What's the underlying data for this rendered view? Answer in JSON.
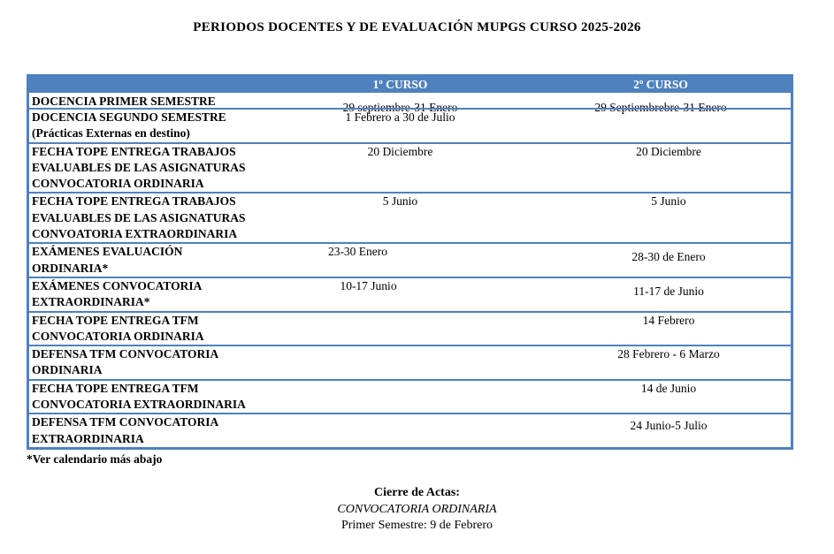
{
  "title": "PERIODOS DOCENTES Y DE EVALUACIÓN MUPGS CURSO 2025-2026",
  "colors": {
    "header_bg": "#4e81bd",
    "border": "#4e81bd",
    "header_text": "#ffffff",
    "body_text": "#000000"
  },
  "table": {
    "headers": [
      "",
      "1º CURSO",
      "2º CURSO"
    ],
    "rows": [
      {
        "label": [
          "DOCENCIA PRIMER SEMESTRE"
        ],
        "curso1": "29 septiembre-31 Enero",
        "curso2": "29 Septiembrebre-31 Enero",
        "overlap": true
      },
      {
        "label": [
          "DOCENCIA SEGUNDO SEMESTRE",
          "(Prácticas Externas en destino)"
        ],
        "curso1": "1 Febrero a 30 de Julio",
        "curso2": ""
      },
      {
        "label": [
          "FECHA TOPE ENTREGA TRABAJOS",
          "EVALUABLES DE LAS ASIGNATURAS",
          "CONVOCATORIA ORDINARIA"
        ],
        "curso1": "20 Diciembre",
        "curso2": "20 Diciembre"
      },
      {
        "label": [
          "FECHA TOPE ENTREGA TRABAJOS",
          "EVALUABLES DE LAS ASIGNATURAS",
          "CONVOATORIA EXTRAORDINARIA"
        ],
        "curso1": "5 Junio",
        "curso2": "5 Junio"
      },
      {
        "label": [
          "EXÁMENES EVALUACIÓN",
          "ORDINARIA*"
        ],
        "curso1": "23-30 Enero",
        "curso2": "28-30 de Enero"
      },
      {
        "label": [
          "EXÁMENES CONVOCATORIA",
          "EXTRAORDINARIA*"
        ],
        "curso1": "10-17 Junio",
        "curso2": "11-17 de Junio"
      },
      {
        "label": [
          "FECHA TOPE ENTREGA TFM",
          "CONVOCATORIA ORDINARIA"
        ],
        "curso1": "",
        "curso2": "14 Febrero"
      },
      {
        "label": [
          "DEFENSA TFM CONVOCATORIA",
          "ORDINARIA"
        ],
        "curso1": "",
        "curso2": "28 Febrero - 6 Marzo"
      },
      {
        "label": [
          "FECHA TOPE ENTREGA TFM",
          "CONVOCATORIA EXTRAORDINARIA"
        ],
        "curso1": "",
        "curso2": "14 de Junio"
      },
      {
        "label": [
          "DEFENSA TFM CONVOCATORIA",
          "EXTRAORDINARIA"
        ],
        "curso1": "",
        "curso2": "24 Junio-5 Julio"
      }
    ]
  },
  "footnote": "*Ver calendario más abajo",
  "closing": {
    "title": "Cierre de Actas:",
    "convocatoria": "CONVOCATORIA ORDINARIA",
    "semestre": "Primer Semestre: 9 de Febrero"
  }
}
